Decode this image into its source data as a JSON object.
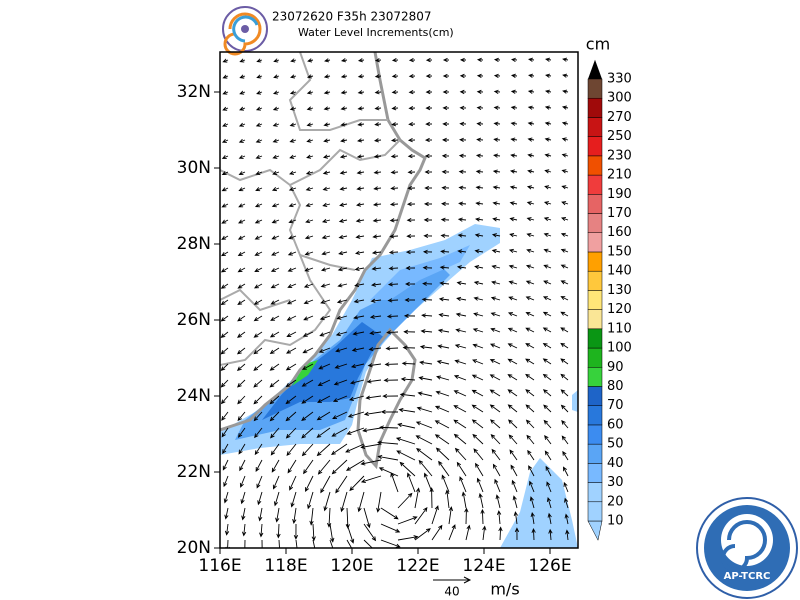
{
  "header": {
    "title": "23072620 F35h 23072807",
    "subtitle": "Water Level Increments(cm)"
  },
  "map": {
    "lat_labels": [
      "20N",
      "22N",
      "24N",
      "26N",
      "28N",
      "30N",
      "32N"
    ],
    "lon_labels": [
      "116E",
      "118E",
      "120E",
      "122E",
      "124E",
      "126E"
    ]
  },
  "colorbar": {
    "unit": "cm",
    "levels": [
      10,
      20,
      30,
      40,
      50,
      60,
      70,
      80,
      90,
      100,
      110,
      120,
      130,
      140,
      150,
      160,
      170,
      190,
      210,
      230,
      250,
      270,
      300,
      330
    ],
    "colors": [
      "#a0d2ff",
      "#a0d2ff",
      "#a0d2ff",
      "#78b9ff",
      "#5aa5f5",
      "#3c8cf0",
      "#2878dc",
      "#1e64c8",
      "#37d23c",
      "#1eb41e",
      "#0a9614",
      "#fae696",
      "#ffe678",
      "#ffc83c",
      "#ffa000",
      "#f0a0a0",
      "#e68282",
      "#e66464",
      "#f03c3c",
      "#f05000",
      "#e61e1e",
      "#c81414",
      "#a00a0a",
      "#6e4632",
      "#000000"
    ]
  },
  "wind_legend": {
    "value": "40",
    "unit": "m/s"
  },
  "logo": {
    "text": "AP-TCRC"
  }
}
